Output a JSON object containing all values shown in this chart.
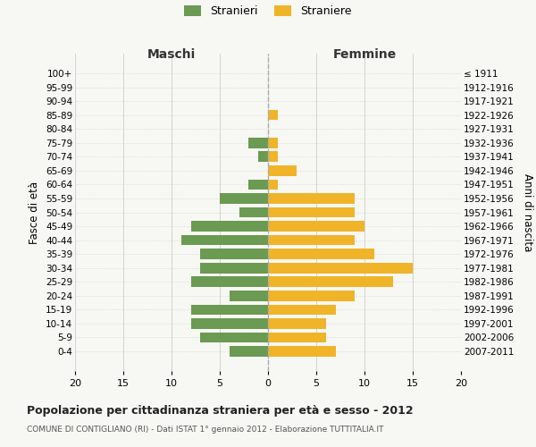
{
  "age_groups": [
    "100+",
    "95-99",
    "90-94",
    "85-89",
    "80-84",
    "75-79",
    "70-74",
    "65-69",
    "60-64",
    "55-59",
    "50-54",
    "45-49",
    "40-44",
    "35-39",
    "30-34",
    "25-29",
    "20-24",
    "15-19",
    "10-14",
    "5-9",
    "0-4"
  ],
  "birth_years": [
    "≤ 1911",
    "1912-1916",
    "1917-1921",
    "1922-1926",
    "1927-1931",
    "1932-1936",
    "1937-1941",
    "1942-1946",
    "1947-1951",
    "1952-1956",
    "1957-1961",
    "1962-1966",
    "1967-1971",
    "1972-1976",
    "1977-1981",
    "1982-1986",
    "1987-1991",
    "1992-1996",
    "1997-2001",
    "2002-2006",
    "2007-2011"
  ],
  "maschi": [
    0,
    0,
    0,
    0,
    0,
    2,
    1,
    0,
    2,
    5,
    3,
    8,
    9,
    7,
    7,
    8,
    4,
    8,
    8,
    7,
    4
  ],
  "femmine": [
    0,
    0,
    0,
    1,
    0,
    1,
    1,
    3,
    1,
    9,
    9,
    10,
    9,
    11,
    15,
    13,
    9,
    7,
    6,
    6,
    7
  ],
  "male_color": "#6b9a52",
  "female_color": "#f0b429",
  "background_color": "#f7f7f3",
  "grid_color": "#cccccc",
  "bar_height": 0.75,
  "title": "Popolazione per cittadinanza straniera per età e sesso - 2012",
  "subtitle": "COMUNE DI CONTIGLIANO (RI) - Dati ISTAT 1° gennaio 2012 - Elaborazione TUTTITALIA.IT",
  "ylabel_left": "Fasce di età",
  "ylabel_right": "Anni di nascita",
  "header_left": "Maschi",
  "header_right": "Femmine",
  "legend_stranieri": "Stranieri",
  "legend_straniere": "Straniere"
}
